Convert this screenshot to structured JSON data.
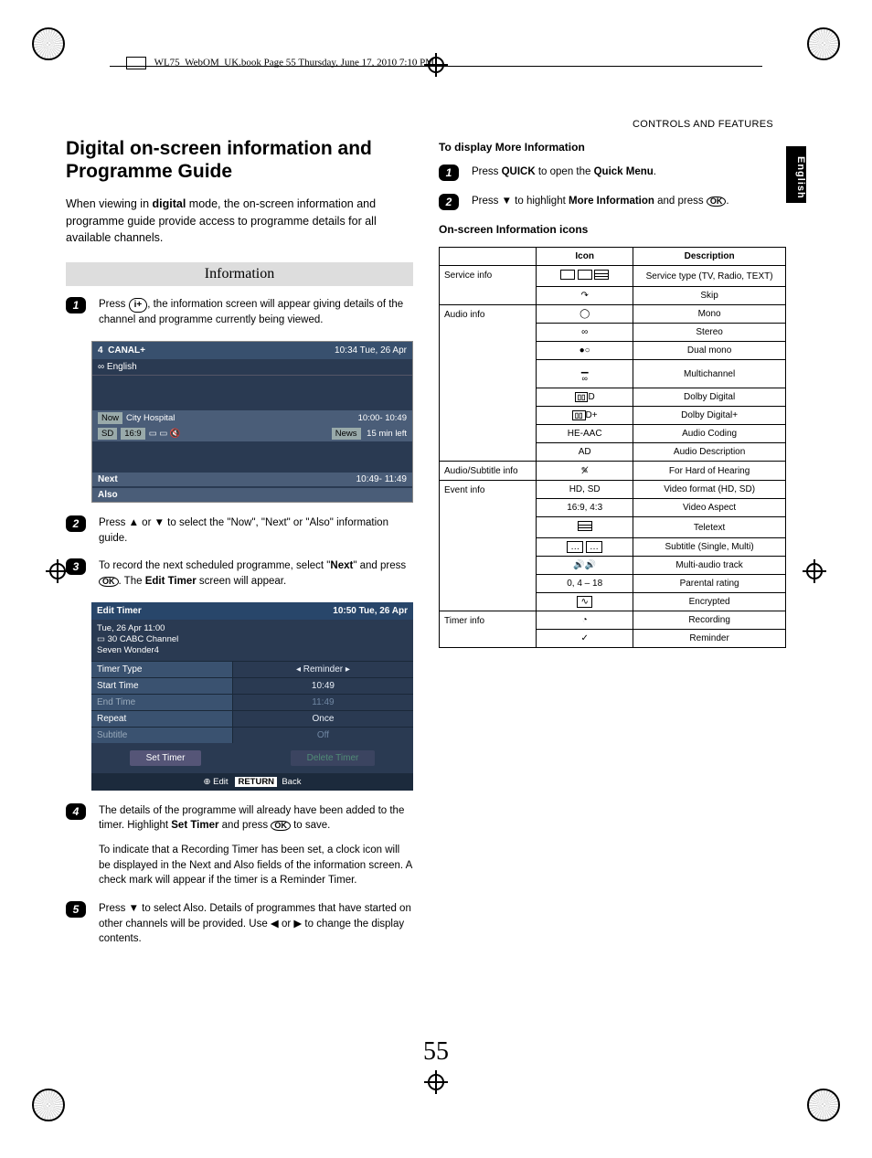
{
  "meta": {
    "book_header": "WL75_WebOM_UK.book  Page 55  Thursday, June 17, 2010  7:10 PM",
    "section_header": "CONTROLS AND FEATURES",
    "language_tab": "English",
    "page_number": "55"
  },
  "left": {
    "title": "Digital on-screen information and Programme Guide",
    "intro_pre": "When viewing in ",
    "intro_bold": "digital",
    "intro_post": " mode, the on-screen information and programme guide provide access to programme details for all available channels.",
    "section_label": "Information",
    "steps": {
      "s1_a": "Press ",
      "s1_b": ", the information screen will appear giving details of the channel and programme currently being viewed.",
      "s2": "Press ▲ or ▼ to select the \"Now\", \"Next\" or \"Also\" information guide.",
      "s3_a": "To record the next scheduled programme, select \"",
      "s3_b": "Next",
      "s3_c": "\" and press ",
      "s3_d": ". The ",
      "s3_e": "Edit Timer",
      "s3_f": " screen will appear.",
      "s4_a": "The details of the programme will already have been added to the timer. Highlight ",
      "s4_b": "Set Timer",
      "s4_c": " and press ",
      "s4_d": " to save.",
      "s4_p2": "To indicate that a Recording Timer has been set, a clock icon will be displayed in the Next and Also fields of the information screen. A check mark will appear if the timer is a Reminder Timer.",
      "s5": "Press ▼ to select Also. Details of programmes that have started on other channels will be provided. Use ◀ or ▶ to change the display contents."
    },
    "osd1": {
      "ch_num": "4",
      "ch_name": "CANAL+",
      "time": "10:34 Tue, 26 Apr",
      "lang": "English",
      "now": "Now",
      "prog": "City Hospital",
      "slot1": "10:00- 10:49",
      "flags": [
        "SD",
        "16:9"
      ],
      "news": "News",
      "left": "15 min left",
      "next": "Next",
      "slot2": "10:49- 11:49",
      "also": "Also"
    },
    "edit_timer": {
      "title": "Edit Timer",
      "clock": "10:50 Tue, 26 Apr",
      "meta1": "Tue, 26 Apr 11:00",
      "meta2": "30 CABC Channel",
      "meta3": "Seven Wonder4",
      "rows": [
        {
          "k": "Timer Type",
          "v": "Reminder",
          "arrows": true
        },
        {
          "k": "Start Time",
          "v": "10:49"
        },
        {
          "k": "End Time",
          "v": "11:49",
          "dim": true
        },
        {
          "k": "Repeat",
          "v": "Once"
        },
        {
          "k": "Subtitle",
          "v": "Off",
          "dim": true
        }
      ],
      "btn1": "Set Timer",
      "btn2": "Delete Timer",
      "foot_edit": "Edit",
      "foot_return": "RETURN",
      "foot_back": "Back"
    }
  },
  "right": {
    "h1": "To display More Information",
    "s1_a": "Press ",
    "s1_b": "QUICK",
    "s1_c": " to open the ",
    "s1_d": "Quick Menu",
    "s1_e": ".",
    "s2_a": "Press ▼ to highlight ",
    "s2_b": "More Information",
    "s2_c": " and press ",
    "h2": "On-screen Information icons",
    "table": {
      "head_icon": "Icon",
      "head_desc": "Description",
      "groups": [
        {
          "cat": "Service info",
          "rows": [
            {
              "i": "tv-radio-text",
              "d": "Service type (TV, Radio, TEXT)"
            },
            {
              "i": "skip",
              "d": "Skip"
            }
          ]
        },
        {
          "cat": "Audio info",
          "rows": [
            {
              "i": "mono",
              "d": "Mono"
            },
            {
              "i": "stereo",
              "d": "Stereo"
            },
            {
              "i": "dualmono",
              "d": "Dual mono"
            },
            {
              "i": "multich",
              "d": "Multichannel"
            },
            {
              "i": "dd",
              "d": "Dolby Digital"
            },
            {
              "i": "ddp",
              "d": "Dolby Digital+"
            },
            {
              "i": "heaac",
              "d": "Audio Coding"
            },
            {
              "i": "ad",
              "d": "Audio Description"
            }
          ]
        },
        {
          "cat": "Audio/Subtitle info",
          "rows": [
            {
              "i": "hoh",
              "d": "For Hard of Hearing"
            }
          ]
        },
        {
          "cat": "Event info",
          "rows": [
            {
              "i": "hdsd",
              "d": "Video format (HD, SD)"
            },
            {
              "i": "aspect",
              "d": "Video Aspect"
            },
            {
              "i": "ttx",
              "d": "Teletext"
            },
            {
              "i": "sub",
              "d": "Subtitle (Single, Multi)"
            },
            {
              "i": "multia",
              "d": "Multi-audio track"
            },
            {
              "i": "parental",
              "d": "Parental rating"
            },
            {
              "i": "enc",
              "d": "Encrypted"
            }
          ]
        },
        {
          "cat": "Timer info",
          "rows": [
            {
              "i": "rec",
              "d": "Recording"
            },
            {
              "i": "rem",
              "d": "Reminder"
            }
          ]
        }
      ],
      "icon_text": {
        "heaac": "HE-AAC",
        "ad": "AD",
        "hdsd": "HD, SD",
        "aspect": "16:9, 4:3",
        "parental": "0, 4 – 18"
      }
    }
  },
  "style": {
    "osd_bg": "#2a3a52",
    "osd_bar": "#4a5d78",
    "fontsize_title": 21,
    "fontsize_body": 12.5,
    "fontsize_step": 11.5,
    "fontsize_table": 10
  }
}
